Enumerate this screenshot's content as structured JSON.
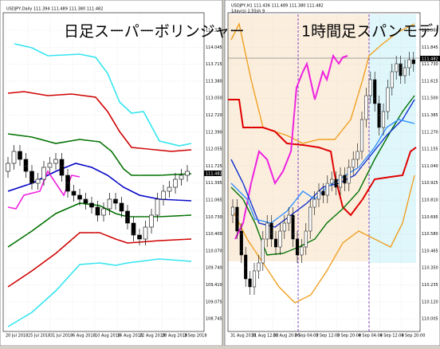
{
  "left_panel": {
    "header": "USDJPY,Daily 111.394 111.489 111.380 111.482",
    "overlay": "日足スーパーボリンジャー",
    "price_label": "111.482",
    "yticks": [
      "114.375",
      "114.045",
      "113.715",
      "113.380",
      "113.050",
      "112.720",
      "112.390",
      "112.055",
      "111.725",
      "111.395",
      "111.065",
      "110.730",
      "110.400",
      "110.070",
      "109.740",
      "109.410",
      "109.075",
      "108.745"
    ],
    "xticks": [
      "20 Jul 2018",
      "25 Jul 2018",
      "31 Jul 2018",
      "6 Aug 2018",
      "10 Aug 2018",
      "16 Aug 2018",
      "22 Aug 2018",
      "28 Aug 2018",
      "3 Sep 2018"
    ]
  },
  "right_panel": {
    "header": "USDJPY,H1 111.436 111.489 111.380 111.482",
    "subheader": "1day(s) 1.5Ssh 9",
    "overlay": "1時間足スパンモデル",
    "price_label": "111.482",
    "yticks": [
      "111.960",
      "111.845",
      "111.730",
      "111.615",
      "111.500",
      "111.385",
      "111.270",
      "111.155",
      "111.040",
      "110.925",
      "110.810",
      "110.695",
      "110.580",
      "110.465",
      "110.350",
      "110.235",
      "110.120",
      "110.005"
    ],
    "xticks": [
      "31 Aug 2018",
      "31 Aug 12:00",
      "31 Aug 20:00",
      "3 Sep 04:00",
      "3 Sep 12:00",
      "3 Sep 20:00",
      "4 Sep 04:00",
      "4 Sep 12:00",
      "4 Sep 20:00"
    ]
  }
}
